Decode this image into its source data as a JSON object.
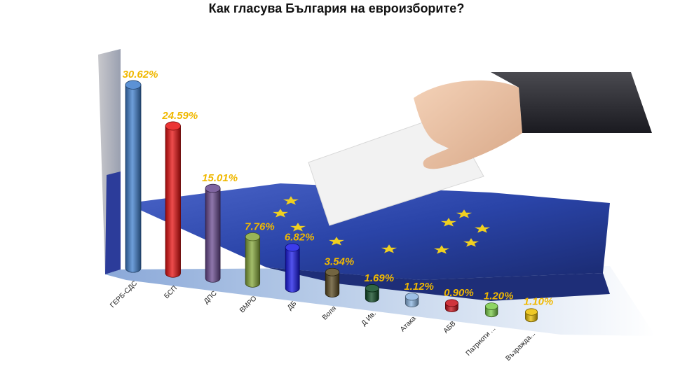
{
  "chart_data": {
    "type": "bar",
    "title": "Как гласува България на евроизборите?",
    "categories": [
      "ГЕРБ-СДС",
      "БСП",
      "ДПС",
      "ВМРО",
      "ДБ",
      "Воля",
      "Д Ив.",
      "Атака",
      "АБВ",
      "Патриоти ...",
      "Възражда..."
    ],
    "values": [
      30.62,
      24.59,
      15.01,
      7.76,
      6.82,
      3.54,
      1.69,
      1.12,
      0.9,
      1.2,
      1.1
    ],
    "labels": [
      "30.62%",
      "24.59%",
      "15.01%",
      "7.76%",
      "6.82%",
      "3.54%",
      "1.69%",
      "1.12%",
      "0.90%",
      "1.20%",
      "1.10%"
    ],
    "colors": [
      "#3f7fce",
      "#e81010",
      "#6a4a90",
      "#86a83a",
      "#1a1ae8",
      "#5a4a20",
      "#0d4a24",
      "#8ab4e0",
      "#c8101a",
      "#7acc48",
      "#ecc000"
    ],
    "ylim": [
      0,
      32
    ],
    "label_color": "#f0b800",
    "xlabel": "",
    "ylabel": ""
  }
}
